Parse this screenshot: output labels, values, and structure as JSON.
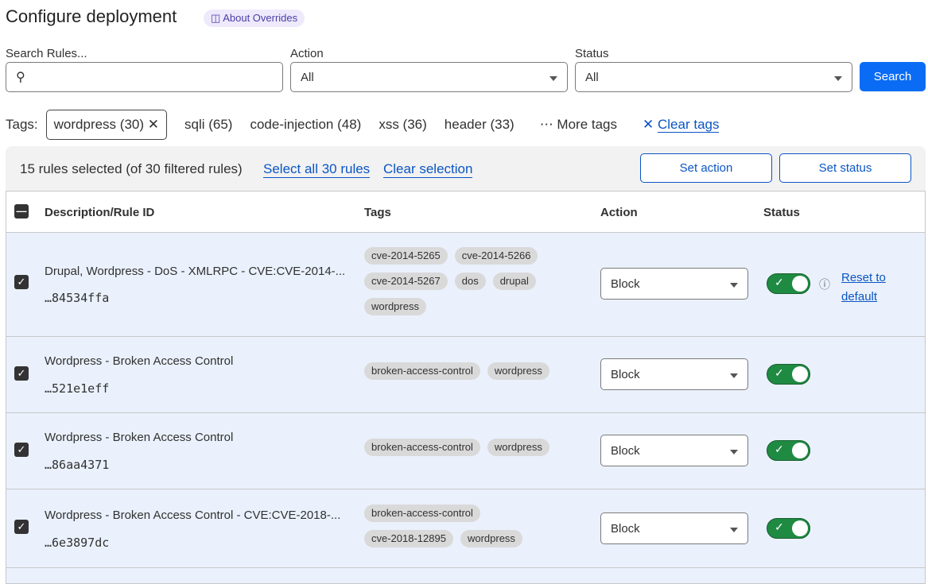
{
  "header": {
    "title": "Configure deployment",
    "about_label": "About Overrides"
  },
  "filters": {
    "search_label": "Search Rules...",
    "search_value": "",
    "action_label": "Action",
    "action_value": "All",
    "status_label": "Status",
    "status_value": "All",
    "search_button": "Search"
  },
  "tags": {
    "label": "Tags:",
    "selected": "wordpress (30)",
    "items": [
      "sqli (65)",
      "code-injection (48)",
      "xss (36)",
      "header (33)"
    ],
    "more": "More tags",
    "clear": "Clear tags"
  },
  "bulk": {
    "summary": "15 rules selected (of 30 filtered rules)",
    "select_all": "Select all 30 rules",
    "clear_selection": "Clear selection",
    "set_action": "Set action",
    "set_status": "Set status"
  },
  "table": {
    "columns": [
      "Description/Rule ID",
      "Tags",
      "Action",
      "Status"
    ],
    "rows": [
      {
        "description": "Drupal, Wordpress - DoS - XMLRPC - CVE:CVE-2014-...",
        "id": "…84534ffa",
        "tags": [
          "cve-2014-5265",
          "cve-2014-5266",
          "cve-2014-5267",
          "dos",
          "drupal",
          "wordpress"
        ],
        "action": "Block",
        "enabled": true,
        "reset": "Reset to default"
      },
      {
        "description": "Wordpress - Broken Access Control",
        "id": "…521e1eff",
        "tags": [
          "broken-access-control",
          "wordpress"
        ],
        "action": "Block",
        "enabled": true
      },
      {
        "description": "Wordpress - Broken Access Control",
        "id": "…86aa4371",
        "tags": [
          "broken-access-control",
          "wordpress"
        ],
        "action": "Block",
        "enabled": true
      },
      {
        "description": "Wordpress - Broken Access Control - CVE:CVE-2018-...",
        "id": "…6e3897dc",
        "tags": [
          "broken-access-control",
          "cve-2018-12895",
          "wordpress"
        ],
        "action": "Block",
        "enabled": true
      }
    ]
  }
}
